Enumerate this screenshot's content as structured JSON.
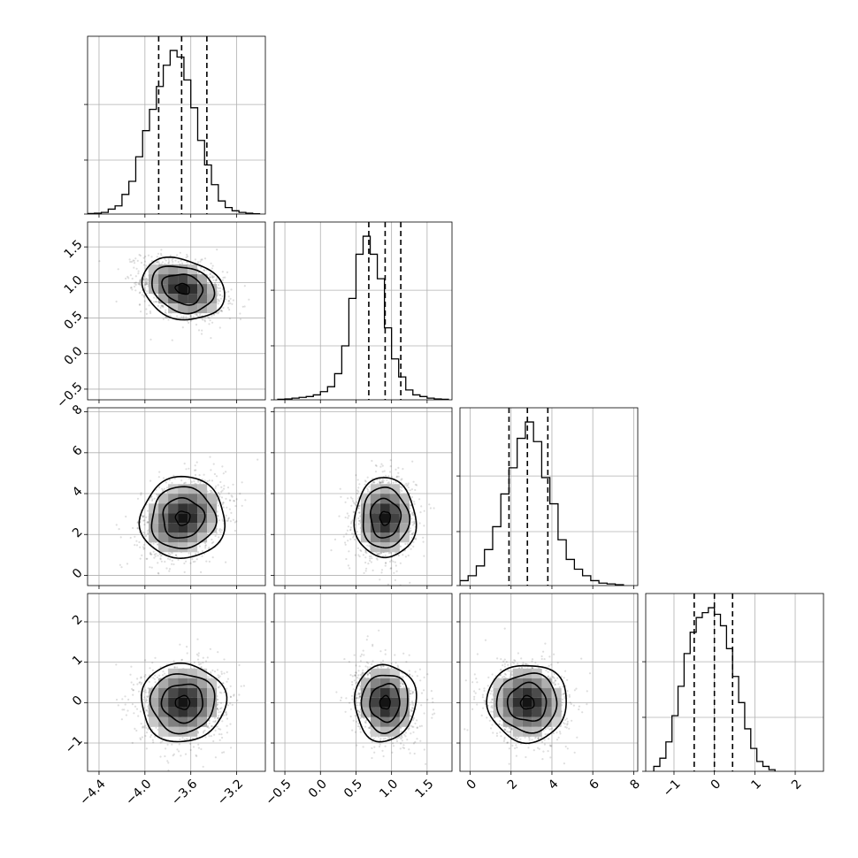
{
  "chart_data": {
    "type": "corner",
    "grid": true,
    "variables": [
      {
        "range": [
          -4.5,
          -2.95
        ],
        "ticks": [
          -4.4,
          -4.0,
          -3.6,
          -3.2
        ],
        "tick_labels": [
          "−4.4",
          "−4.0",
          "−3.6",
          "−3.2"
        ],
        "quantiles": [
          -3.88,
          -3.68,
          -3.46
        ],
        "mean": -3.67,
        "std": 0.18,
        "hist": {
          "edges": [
            -4.5,
            -4.44,
            -4.38,
            -4.32,
            -4.26,
            -4.2,
            -4.14,
            -4.08,
            -4.02,
            -3.96,
            -3.9,
            -3.84,
            -3.78,
            -3.72,
            -3.66,
            -3.6,
            -3.54,
            -3.48,
            -3.42,
            -3.36,
            -3.3,
            -3.24,
            -3.18,
            -3.12,
            -3.06,
            -3.0
          ],
          "counts": [
            0.3,
            0.5,
            1,
            3,
            5,
            12,
            20,
            35,
            51,
            64,
            78,
            91,
            100,
            96,
            82,
            65,
            45,
            30,
            18,
            8,
            4,
            2,
            1,
            0.5,
            0.2
          ]
        }
      },
      {
        "range": [
          -0.65,
          1.85
        ],
        "ticks": [
          -0.5,
          0.0,
          0.5,
          1.0,
          1.5
        ],
        "tick_labels": [
          "−0.5",
          "0.0",
          "0.5",
          "1.0",
          "1.5"
        ],
        "quantiles": [
          0.68,
          0.91,
          1.13
        ],
        "mean": 0.91,
        "std": 0.21,
        "hist": {
          "edges": [
            -0.6,
            -0.5,
            -0.4,
            -0.3,
            -0.2,
            -0.1,
            0.0,
            0.1,
            0.2,
            0.3,
            0.4,
            0.5,
            0.6,
            0.7,
            0.8,
            0.9,
            1.0,
            1.1,
            1.2,
            1.3,
            1.4,
            1.5,
            1.6,
            1.7,
            1.8
          ],
          "counts": [
            0.3,
            0.5,
            1,
            1.5,
            2,
            3,
            5,
            8,
            16,
            33,
            62,
            89,
            100,
            89,
            74,
            44,
            25,
            14,
            6,
            3,
            2,
            1,
            0.5,
            0.3
          ]
        }
      },
      {
        "range": [
          -0.5,
          8.2
        ],
        "ticks": [
          0,
          2,
          4,
          6,
          8
        ],
        "tick_labels": [
          "0",
          "2",
          "4",
          "6",
          "8"
        ],
        "quantiles": [
          1.9,
          2.8,
          3.8
        ],
        "mean": 2.8,
        "std": 0.95,
        "hist": {
          "edges": [
            -0.5,
            -0.1,
            0.3,
            0.7,
            1.1,
            1.5,
            1.9,
            2.3,
            2.7,
            3.1,
            3.5,
            3.9,
            4.3,
            4.7,
            5.1,
            5.5,
            5.9,
            6.3,
            6.7,
            7.1,
            7.5
          ],
          "counts": [
            3,
            6,
            12,
            22,
            36,
            56,
            72,
            90,
            100,
            88,
            66,
            50,
            28,
            16,
            10,
            6,
            3,
            1.5,
            1,
            0.5
          ]
        }
      },
      {
        "range": [
          -1.7,
          2.7
        ],
        "ticks": [
          -1,
          0,
          1,
          2
        ],
        "tick_labels": [
          "−1",
          "0",
          "1",
          "2"
        ],
        "quantiles": [
          -0.5,
          0.0,
          0.45
        ],
        "mean": 0.0,
        "std": 0.47,
        "hist": {
          "edges": [
            -1.5,
            -1.35,
            -1.2,
            -1.05,
            -0.9,
            -0.75,
            -0.6,
            -0.45,
            -0.3,
            -0.15,
            0.0,
            0.15,
            0.3,
            0.45,
            0.6,
            0.75,
            0.9,
            1.05,
            1.2,
            1.35,
            1.5
          ],
          "counts": [
            3,
            8,
            18,
            34,
            52,
            72,
            85,
            94,
            97,
            100,
            96,
            89,
            75,
            58,
            42,
            26,
            14,
            6,
            3,
            1
          ]
        }
      }
    ],
    "correlations": [
      {
        "pair": [
          1,
          0
        ],
        "rho": -0.35
      },
      {
        "pair": [
          2,
          0
        ],
        "rho": 0.25
      },
      {
        "pair": [
          2,
          1
        ],
        "rho": 0.05
      },
      {
        "pair": [
          3,
          0
        ],
        "rho": 0.05
      },
      {
        "pair": [
          3,
          1
        ],
        "rho": -0.15
      },
      {
        "pair": [
          3,
          2
        ],
        "rho": -0.05
      }
    ]
  }
}
